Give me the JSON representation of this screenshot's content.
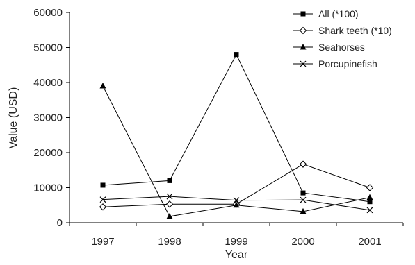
{
  "chart_data": {
    "type": "line",
    "title": "",
    "xlabel": "Year",
    "ylabel": "Value (USD)",
    "x": [
      "1997",
      "1998",
      "1999",
      "2000",
      "2001"
    ],
    "ylim": [
      0,
      60000
    ],
    "y_ticks": [
      "0",
      "10000",
      "20000",
      "30000",
      "40000",
      "50000",
      "60000"
    ],
    "grid": false,
    "legend_position": "top-right",
    "series": [
      {
        "name": "All (*100)",
        "marker": "square",
        "values": [
          10700,
          12000,
          48000,
          8500,
          6000
        ]
      },
      {
        "name": "Shark teeth (*10)",
        "marker": "diamond",
        "values": [
          4500,
          5300,
          5300,
          16700,
          10000
        ]
      },
      {
        "name": "Seahorses",
        "marker": "triangle",
        "values": [
          39000,
          1800,
          5000,
          3200,
          7200
        ]
      },
      {
        "name": "Porcupinefish",
        "marker": "x",
        "values": [
          6600,
          7500,
          6400,
          6500,
          3600
        ]
      }
    ]
  }
}
